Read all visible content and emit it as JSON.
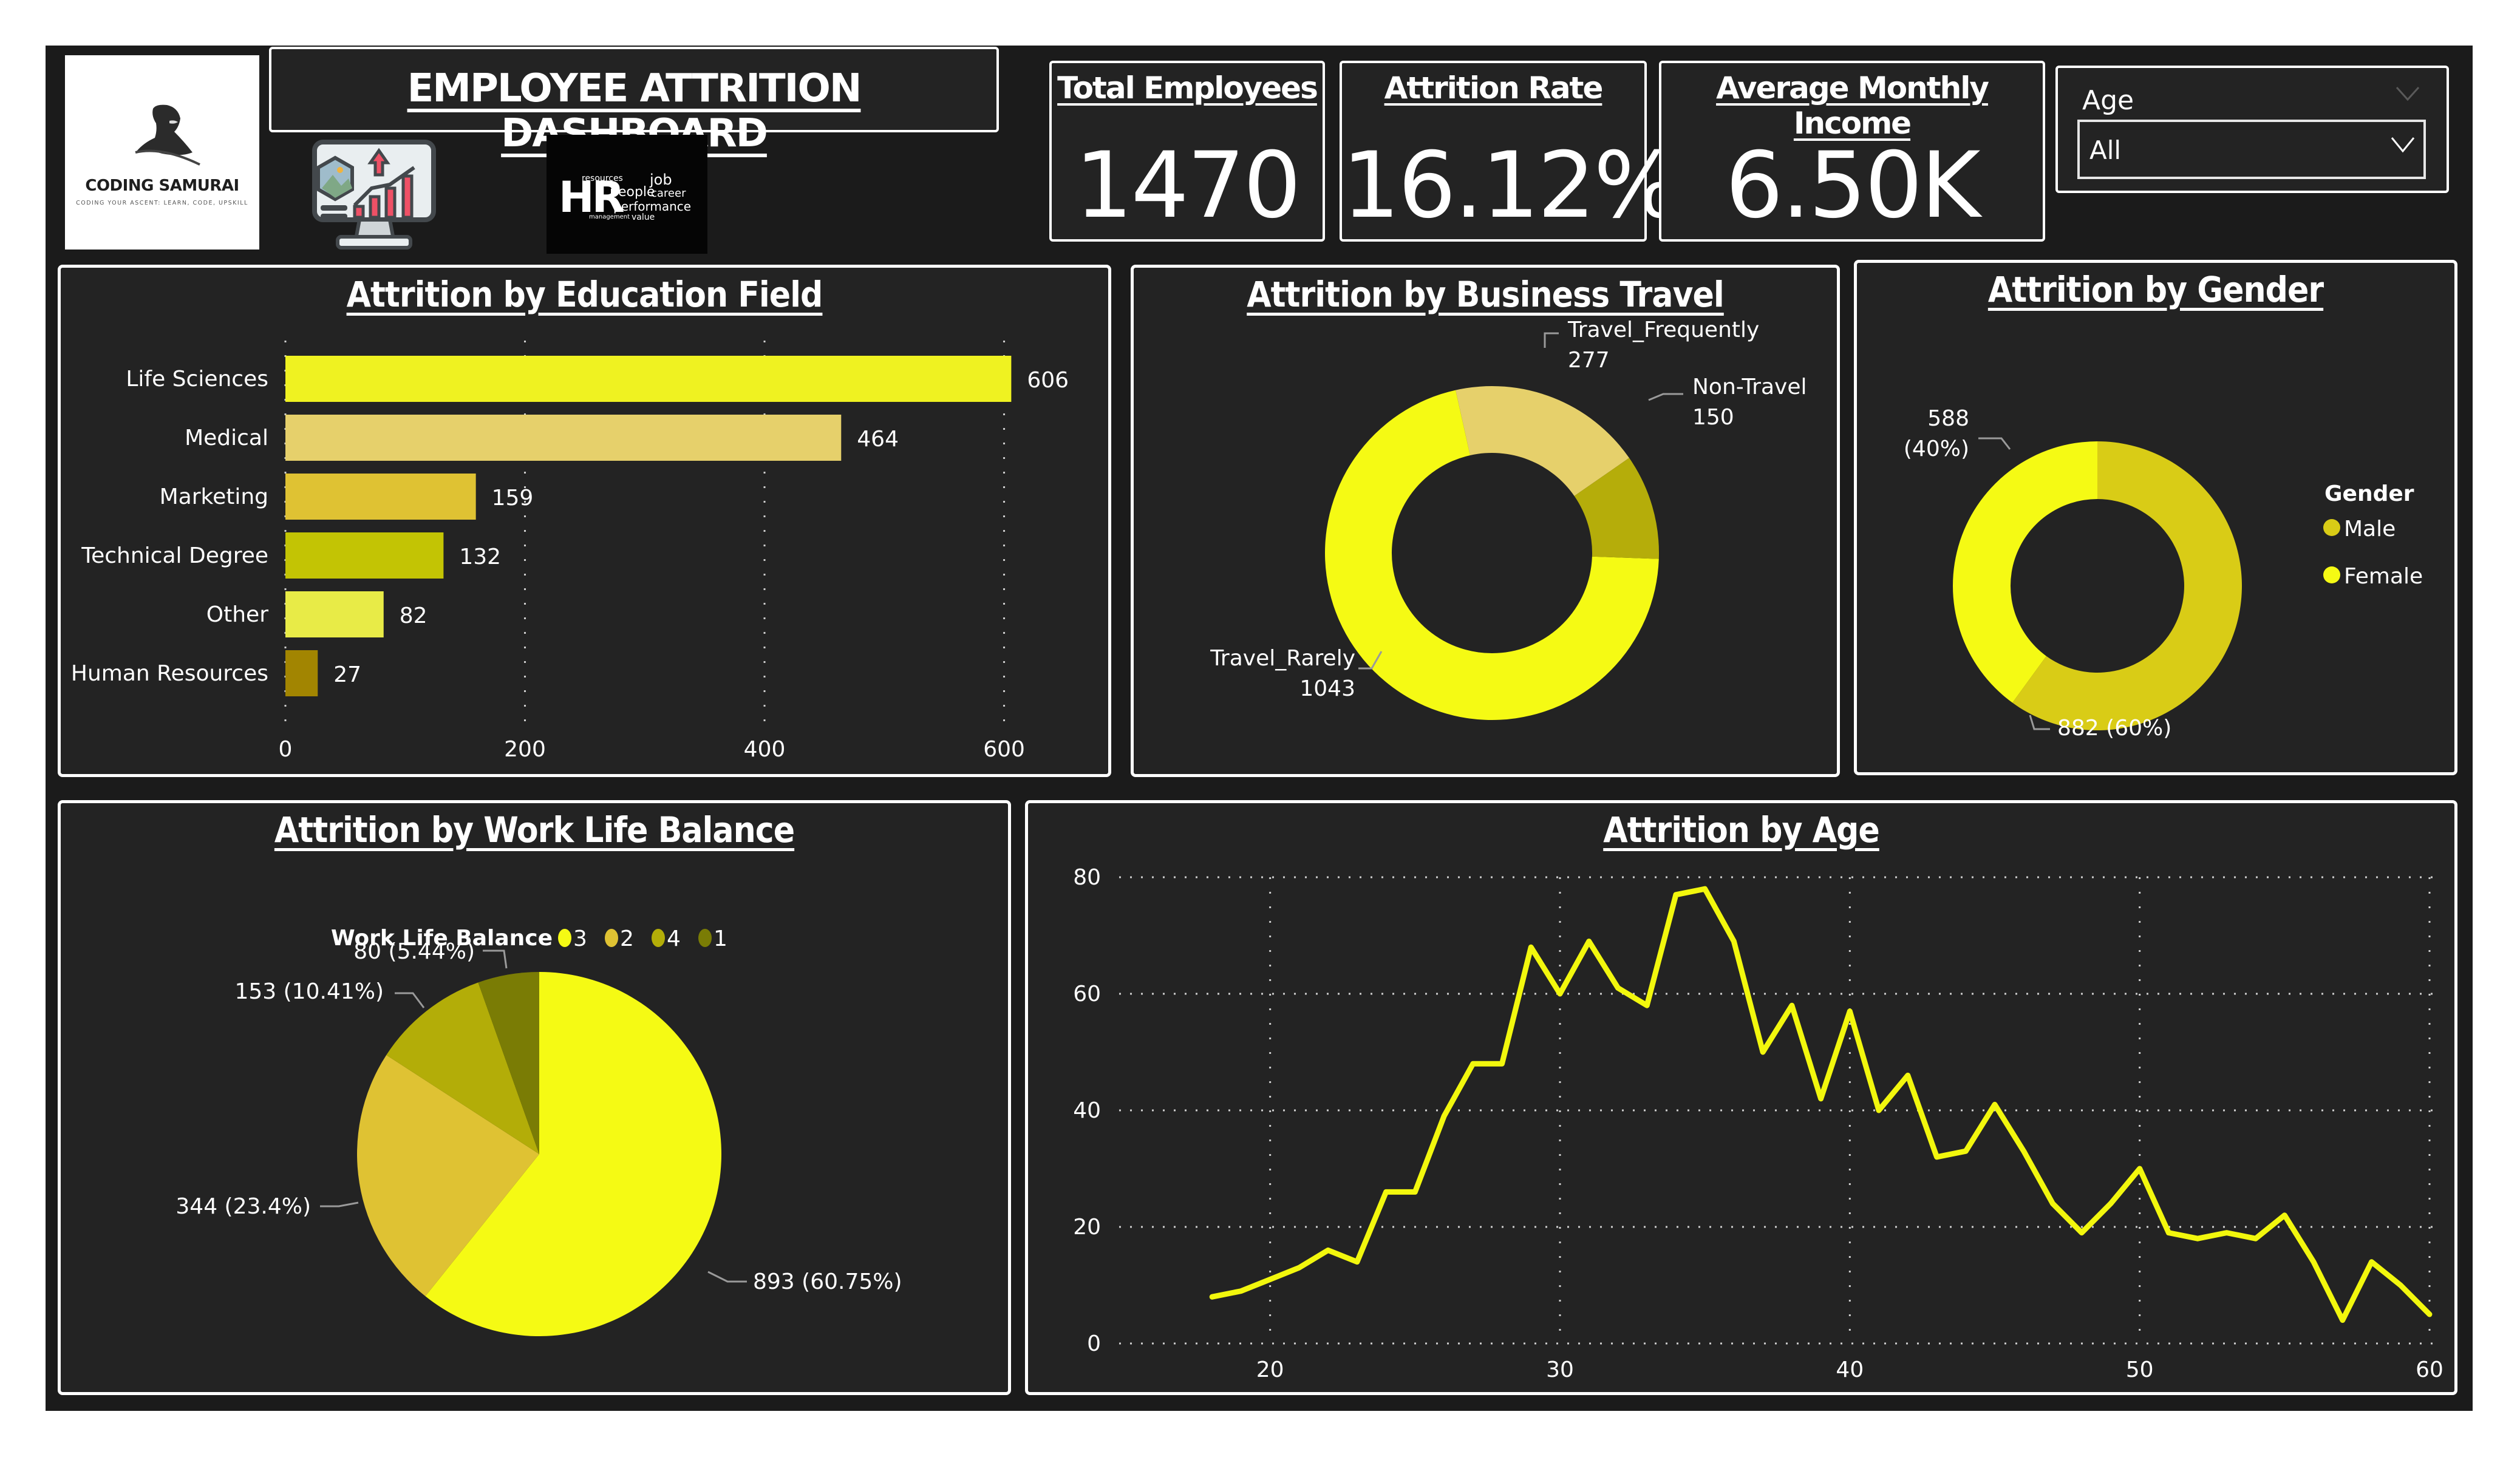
{
  "header": {
    "title": "EMPLOYEE ATTRITION DASHBOARD",
    "logo": {
      "brand": "CODING SAMURAI",
      "tagline": "CODING YOUR ASCENT: LEARN, CODE, UPSKILL"
    },
    "images": [
      "monitor-analytics-illustration",
      "hr-word-cloud"
    ],
    "hr_cloud_words": [
      "HR",
      "people",
      "career",
      "job",
      "performance",
      "resources",
      "value",
      "management"
    ]
  },
  "kpis": [
    {
      "label": "Total Employees",
      "value": "1470"
    },
    {
      "label": "Attrition Rate",
      "value": "16.12%"
    },
    {
      "label": "Average Monthly Income",
      "value": "6.50K"
    }
  ],
  "slicer": {
    "label": "Age",
    "selected": "All"
  },
  "colors": {
    "frame": "#1b1b1b",
    "panel": "#232323",
    "accent_yellow": "#f5fa14",
    "line": "#f2f70d"
  },
  "chart_data": [
    {
      "id": "education",
      "type": "bar",
      "orientation": "horizontal",
      "title": "Attrition by Education Field",
      "categories": [
        "Life Sciences",
        "Medical",
        "Marketing",
        "Technical Degree",
        "Other",
        "Human Resources"
      ],
      "values": [
        606,
        464,
        159,
        132,
        82,
        27
      ],
      "colors": [
        "#eff221",
        "#e6d06b",
        "#dfc233",
        "#c3c404",
        "#e8eb47",
        "#a28501"
      ],
      "xticks": [
        0,
        200,
        400,
        600
      ],
      "xlim": [
        0,
        620
      ],
      "grid": true
    },
    {
      "id": "business_travel",
      "type": "pie",
      "variant": "donut",
      "title": "Attrition by Business Travel",
      "slices": [
        {
          "label": "Travel_Rarely",
          "value": 1043,
          "color": "#f5fa14"
        },
        {
          "label": "Travel_Frequently",
          "value": 277,
          "color": "#e6d06b"
        },
        {
          "label": "Non-Travel",
          "value": 150,
          "color": "#b5ad0a"
        }
      ]
    },
    {
      "id": "gender",
      "type": "pie",
      "variant": "donut",
      "title": "Attrition by Gender",
      "legend_title": "Gender",
      "legend_position": "right",
      "slices": [
        {
          "label": "Male",
          "value": 882,
          "percent": "60%",
          "color": "#d9cc16"
        },
        {
          "label": "Female",
          "value": 588,
          "percent": "40%",
          "color": "#f5fa14"
        }
      ]
    },
    {
      "id": "work_life_balance",
      "type": "pie",
      "title": "Attrition by Work Life Balance",
      "legend_title": "Work Life Balance",
      "legend_position": "top",
      "slices": [
        {
          "label": "3",
          "value": 893,
          "percent": "60.75%",
          "color": "#f5fa14"
        },
        {
          "label": "2",
          "value": 344,
          "percent": "23.4%",
          "color": "#dfc233"
        },
        {
          "label": "4",
          "value": 153,
          "percent": "10.41%",
          "color": "#b3ad08"
        },
        {
          "label": "1",
          "value": 80,
          "percent": "5.44%",
          "color": "#7a7c05"
        }
      ]
    },
    {
      "id": "age",
      "type": "line",
      "title": "Attrition by Age",
      "xlabel": "",
      "ylabel": "",
      "x": [
        18,
        19,
        20,
        21,
        22,
        23,
        24,
        25,
        26,
        27,
        28,
        29,
        30,
        31,
        32,
        33,
        34,
        35,
        36,
        37,
        38,
        39,
        40,
        41,
        42,
        43,
        44,
        45,
        46,
        47,
        48,
        49,
        50,
        51,
        52,
        53,
        54,
        55,
        56,
        57,
        58,
        59,
        60
      ],
      "y": [
        8,
        9,
        11,
        13,
        16,
        14,
        26,
        26,
        39,
        48,
        48,
        68,
        60,
        69,
        61,
        58,
        77,
        78,
        69,
        50,
        58,
        42,
        57,
        40,
        46,
        32,
        33,
        41,
        33,
        24,
        19,
        24,
        30,
        19,
        18,
        19,
        18,
        22,
        14,
        4,
        14,
        10,
        5
      ],
      "xticks": [
        20,
        30,
        40,
        50,
        60
      ],
      "yticks": [
        0,
        20,
        40,
        60,
        80
      ],
      "xlim": [
        15,
        60
      ],
      "ylim": [
        0,
        80
      ],
      "grid": true,
      "color": "#f2f70d"
    }
  ]
}
